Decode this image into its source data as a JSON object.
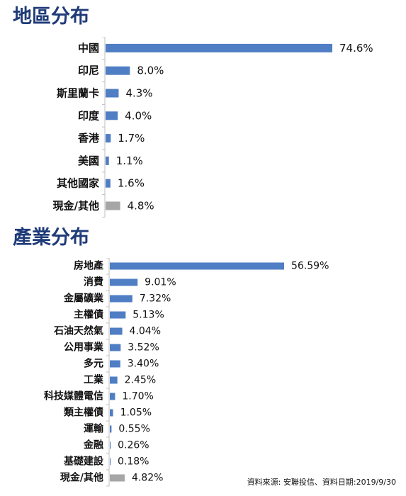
{
  "titles": {
    "region": "地區分布",
    "industry": "產業分布"
  },
  "colors": {
    "bar": "#4f7ec4",
    "bar_other": "#a6a6a6",
    "title": "#1f3b78"
  },
  "source_note": "資料來源: 安聯投信、資料日期:2019/9/30",
  "chart_data": [
    {
      "type": "bar",
      "orientation": "horizontal",
      "title": "地區分布",
      "categories": [
        "中國",
        "印尼",
        "斯里蘭卡",
        "印度",
        "香港",
        "美國",
        "其他國家",
        "現金/其他"
      ],
      "values": [
        74.6,
        8.0,
        4.3,
        4.0,
        1.7,
        1.1,
        1.6,
        4.8
      ],
      "labels": [
        "74.6%",
        "8.0%",
        "4.3%",
        "4.0%",
        "1.7%",
        "1.1%",
        "1.6%",
        "4.8%"
      ],
      "bar_colors": [
        "#4f7ec4",
        "#4f7ec4",
        "#4f7ec4",
        "#4f7ec4",
        "#4f7ec4",
        "#4f7ec4",
        "#4f7ec4",
        "#a6a6a6"
      ],
      "xlim": [
        0,
        74.6
      ],
      "grid": false,
      "legend": "none"
    },
    {
      "type": "bar",
      "orientation": "horizontal",
      "title": "產業分布",
      "categories": [
        "房地產",
        "消費",
        "金屬礦業",
        "主權債",
        "石油天然氣",
        "公用事業",
        "多元",
        "工業",
        "科技媒體電信",
        "類主權債",
        "運輸",
        "金融",
        "基礎建設",
        "現金/其他"
      ],
      "values": [
        56.59,
        9.01,
        7.32,
        5.13,
        4.04,
        3.52,
        3.4,
        2.45,
        1.7,
        1.05,
        0.55,
        0.26,
        0.18,
        4.82
      ],
      "labels": [
        "56.59%",
        "9.01%",
        "7.32%",
        "5.13%",
        "4.04%",
        "3.52%",
        "3.40%",
        "2.45%",
        "1.70%",
        "1.05%",
        "0.55%",
        "0.26%",
        "0.18%",
        "4.82%"
      ],
      "bar_colors": [
        "#4f7ec4",
        "#4f7ec4",
        "#4f7ec4",
        "#4f7ec4",
        "#4f7ec4",
        "#4f7ec4",
        "#4f7ec4",
        "#4f7ec4",
        "#4f7ec4",
        "#4f7ec4",
        "#4f7ec4",
        "#4f7ec4",
        "#4f7ec4",
        "#a6a6a6"
      ],
      "xlim": [
        0,
        56.59
      ],
      "grid": false,
      "legend": "none"
    }
  ]
}
